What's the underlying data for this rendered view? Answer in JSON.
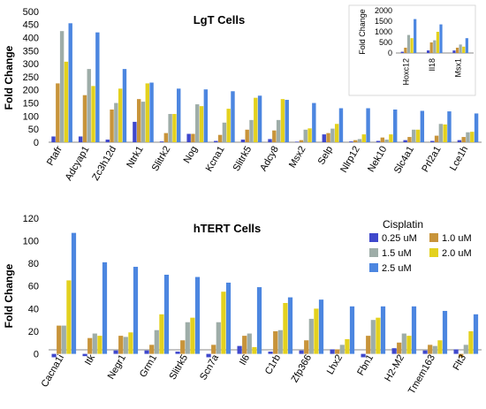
{
  "figure": {
    "legend_title": "Cisplatin"
  },
  "colors": [
    "#3f48cc",
    "#c8943a",
    "#9eada8",
    "#e3d11e",
    "#4c86e0"
  ],
  "chart_data": [
    {
      "type": "bar",
      "title": "LgT Cells",
      "xlabel": "",
      "ylabel": "Fold Change",
      "ylim": [
        0,
        500
      ],
      "yticks": [
        0,
        50,
        100,
        150,
        200,
        250,
        300,
        350,
        400,
        450,
        500
      ],
      "categories": [
        "Ptafr",
        "Adcyap1",
        "Zc3h12d",
        "Ntrk1",
        "Slitrk2",
        "Nog",
        "Kcna1",
        "Slitrk5",
        "Adcy8",
        "Msx2",
        "Selp",
        "Nlrp12",
        "Nek10",
        "Slc4a1",
        "Prl2a1",
        "Lce1h"
      ],
      "series": [
        {
          "name": "0.25 uM",
          "values": [
            22,
            22,
            10,
            78,
            3,
            32,
            5,
            10,
            12,
            2,
            30,
            3,
            5,
            8,
            5,
            8
          ]
        },
        {
          "name": "1.0 uM",
          "values": [
            225,
            180,
            125,
            165,
            35,
            32,
            28,
            48,
            45,
            8,
            35,
            8,
            18,
            20,
            25,
            20
          ]
        },
        {
          "name": "1.5 uM",
          "values": [
            425,
            280,
            150,
            155,
            108,
            145,
            75,
            85,
            85,
            48,
            52,
            12,
            10,
            48,
            70,
            38
          ]
        },
        {
          "name": "2.0 uM",
          "values": [
            308,
            215,
            205,
            225,
            108,
            138,
            128,
            170,
            165,
            53,
            70,
            30,
            30,
            48,
            68,
            40
          ]
        },
        {
          "name": "2.5 uM",
          "values": [
            455,
            420,
            280,
            228,
            205,
            202,
            195,
            178,
            162,
            150,
            130,
            130,
            125,
            120,
            118,
            110
          ]
        }
      ],
      "grid": false,
      "legend": "none"
    },
    {
      "type": "bar",
      "title": "",
      "xlabel": "",
      "ylabel": "Fold Change",
      "ylim": [
        0,
        2000
      ],
      "yticks": [
        0,
        500,
        1000,
        1500,
        2000
      ],
      "categories": [
        "Hoxc12",
        "Il18",
        "Msx1"
      ],
      "series": [
        {
          "name": "0.25 uM",
          "values": [
            60,
            120,
            120
          ]
        },
        {
          "name": "1.0 uM",
          "values": [
            250,
            500,
            250
          ]
        },
        {
          "name": "1.5 uM",
          "values": [
            850,
            600,
            400
          ]
        },
        {
          "name": "2.0 uM",
          "values": [
            700,
            1000,
            300
          ]
        },
        {
          "name": "2.5 uM",
          "values": [
            1600,
            1350,
            700
          ]
        }
      ],
      "grid": false,
      "legend": "none"
    },
    {
      "type": "bar",
      "title": "hTERT Cells",
      "xlabel": "",
      "ylabel": "Fold Change",
      "ylim": [
        -5,
        120
      ],
      "yticks": [
        0,
        20,
        40,
        60,
        80,
        100,
        120
      ],
      "categories": [
        "Cacna1i",
        "Itk",
        "Negr1",
        "Grm1",
        "Slitrk5",
        "Scn7a",
        "Il6",
        "C1rb",
        "Zfp366",
        "Lhx2",
        "Fbn1",
        "H2-M2",
        "Tmem163",
        "Flt3"
      ],
      "series": [
        {
          "name": "0.25 uM",
          "values": [
            -3,
            -2,
            3,
            3,
            2,
            -3,
            7,
            2,
            3,
            4,
            -3,
            5,
            3,
            4
          ]
        },
        {
          "name": "1.0 uM",
          "values": [
            25,
            14,
            16,
            8,
            12,
            8,
            16,
            20,
            12,
            4,
            16,
            10,
            8,
            -3
          ]
        },
        {
          "name": "1.5 uM",
          "values": [
            25,
            18,
            15,
            21,
            28,
            28,
            18,
            21,
            31,
            8,
            30,
            18,
            7,
            8
          ]
        },
        {
          "name": "2.0 uM",
          "values": [
            65,
            16,
            19,
            35,
            32,
            55,
            6,
            45,
            40,
            13,
            32,
            16,
            12,
            20
          ]
        },
        {
          "name": "2.5 uM",
          "values": [
            107,
            81,
            77,
            70,
            68,
            63,
            59,
            50,
            48,
            42,
            42,
            42,
            38,
            35
          ]
        }
      ],
      "grid": false,
      "legend": "top-right"
    }
  ]
}
